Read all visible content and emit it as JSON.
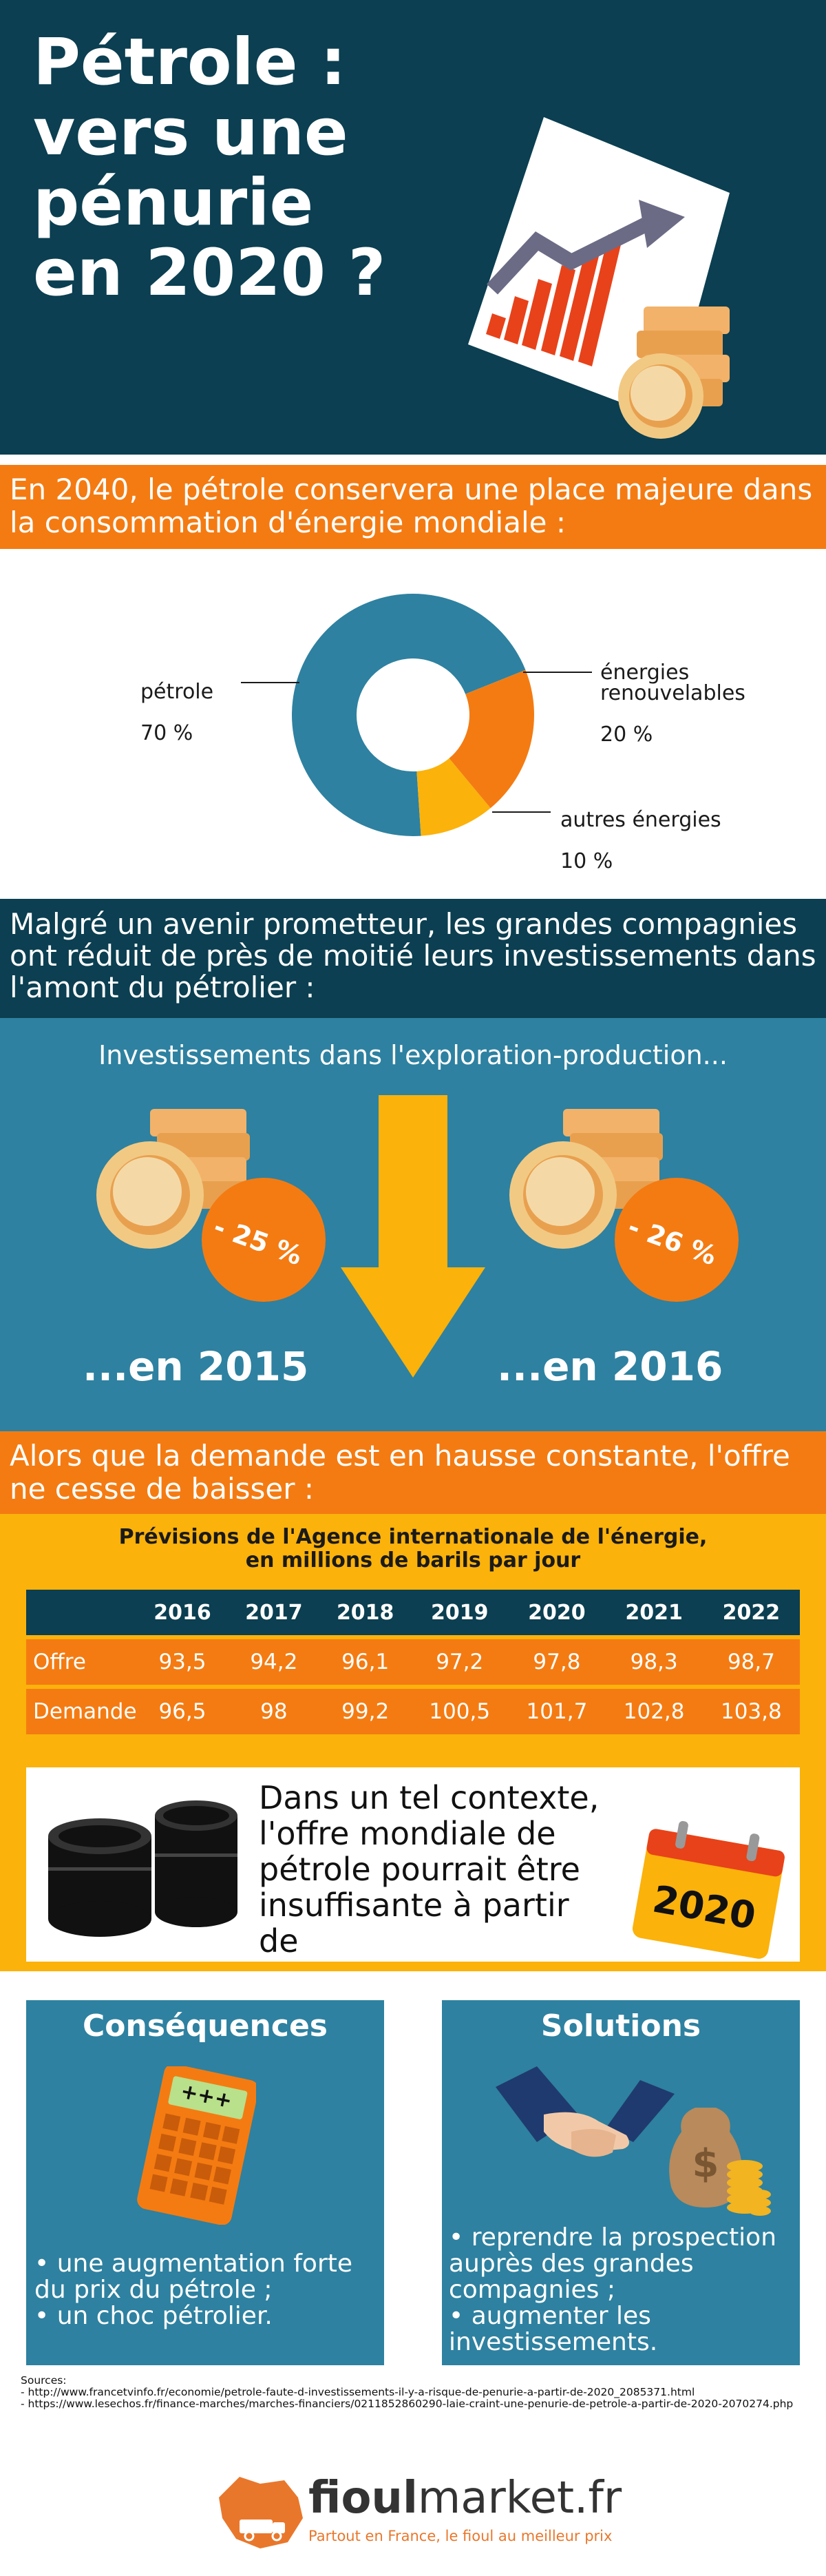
{
  "hero": {
    "title": "Pétrole :\nvers une\npénurie\nen 2020 ?"
  },
  "section1": {
    "heading": "En 2040, le pétrole conservera une place majeure dans la consommation d'énergie mondiale :"
  },
  "chart_data": {
    "type": "pie",
    "categories": [
      "pétrole",
      "énergies renouvelables",
      "autres énergies"
    ],
    "values": [
      70,
      20,
      10
    ],
    "colors": [
      "#2e81a0",
      "#f47b12",
      "#fbb20b"
    ],
    "labels": [
      {
        "name": "pétrole",
        "value": "70 %"
      },
      {
        "name": "énergies\nrenouvelables",
        "value": "20 %"
      },
      {
        "name": "autres énergies",
        "value": "10 %"
      }
    ]
  },
  "section2": {
    "heading": "Malgré un avenir prometteur, les grandes compagnies ont réduit de près de moitié leurs investissements dans l'amont du pétrolier :",
    "subtitle": "Investissements dans l'exploration-production...",
    "left": {
      "pct": "- 25 %",
      "year": "...en 2015"
    },
    "right": {
      "pct": "- 26 %",
      "year": "...en 2016"
    }
  },
  "section3": {
    "heading": "Alors que la demande est en hausse constante, l'offre ne cesse de baisser :",
    "table_title": "Prévisions de l'Agence internationale de l'énergie,\nen millions de barils par jour",
    "columns": [
      "",
      "2016",
      "2017",
      "2018",
      "2019",
      "2020",
      "2021",
      "2022"
    ],
    "rows": [
      {
        "label": "Offre",
        "values": [
          "93,5",
          "94,2",
          "96,1",
          "97,2",
          "97,8",
          "98,3",
          "98,7"
        ]
      },
      {
        "label": "Demande",
        "values": [
          "96,5",
          "98",
          "99,2",
          "100,5",
          "101,7",
          "102,8",
          "103,8"
        ]
      }
    ],
    "context_text": "Dans un tel contexte, l'offre mondiale de pétrole pourrait être insuffisante à partir de",
    "calendar_year": "2020",
    "calendar_icon_text": "+++"
  },
  "consequences": {
    "title": "Conséquences",
    "items": [
      "une augmentation forte du prix du pétrole ;",
      "un choc pétrolier."
    ],
    "calc_display": "+++"
  },
  "solutions": {
    "title": "Solutions",
    "items": [
      "reprendre la prospection auprès des grandes compagnies ;",
      "augmenter les investissements."
    ]
  },
  "sources": {
    "label": "Sources:",
    "lines": [
      "- http://www.francetvinfo.fr/economie/petrole-faute-d-investissements-il-y-a-risque-de-penurie-a-partir-de-2020_2085371.html",
      "- https://www.lesechos.fr/finance-marches/marches-financiers/0211852860290-laie-craint-une-penurie-de-petrole-a-partir-de-2020-2070274.php"
    ]
  },
  "brand": {
    "name_bold": "fioul",
    "name_rest": "market.fr",
    "tagline": "Partout en France, le fioul au meilleur prix"
  },
  "colors": {
    "navy": "#0b3f51",
    "blue": "#2e81a0",
    "orange": "#f47b12",
    "yellow": "#fbb20b"
  }
}
